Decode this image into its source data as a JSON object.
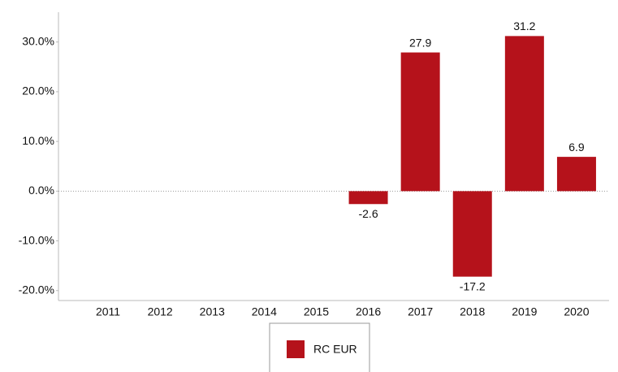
{
  "chart_data": {
    "type": "bar",
    "categories": [
      "2011",
      "2012",
      "2013",
      "2014",
      "2015",
      "2016",
      "2017",
      "2018",
      "2019",
      "2020"
    ],
    "series": [
      {
        "name": "RC EUR",
        "color": "#b5121b",
        "values": [
          null,
          null,
          null,
          null,
          null,
          -2.6,
          27.9,
          -17.2,
          31.2,
          6.9
        ]
      }
    ],
    "ylim": [
      -22,
      36
    ],
    "yticks": [
      {
        "value": -20,
        "label": "-20.0%"
      },
      {
        "value": -10,
        "label": "-10.0%"
      },
      {
        "value": 0,
        "label": "0.0%"
      },
      {
        "value": 10,
        "label": "10.0%"
      },
      {
        "value": 20,
        "label": "20.0%"
      },
      {
        "value": 30,
        "label": "30.0%"
      }
    ],
    "grid": false,
    "legend": "bottom"
  }
}
